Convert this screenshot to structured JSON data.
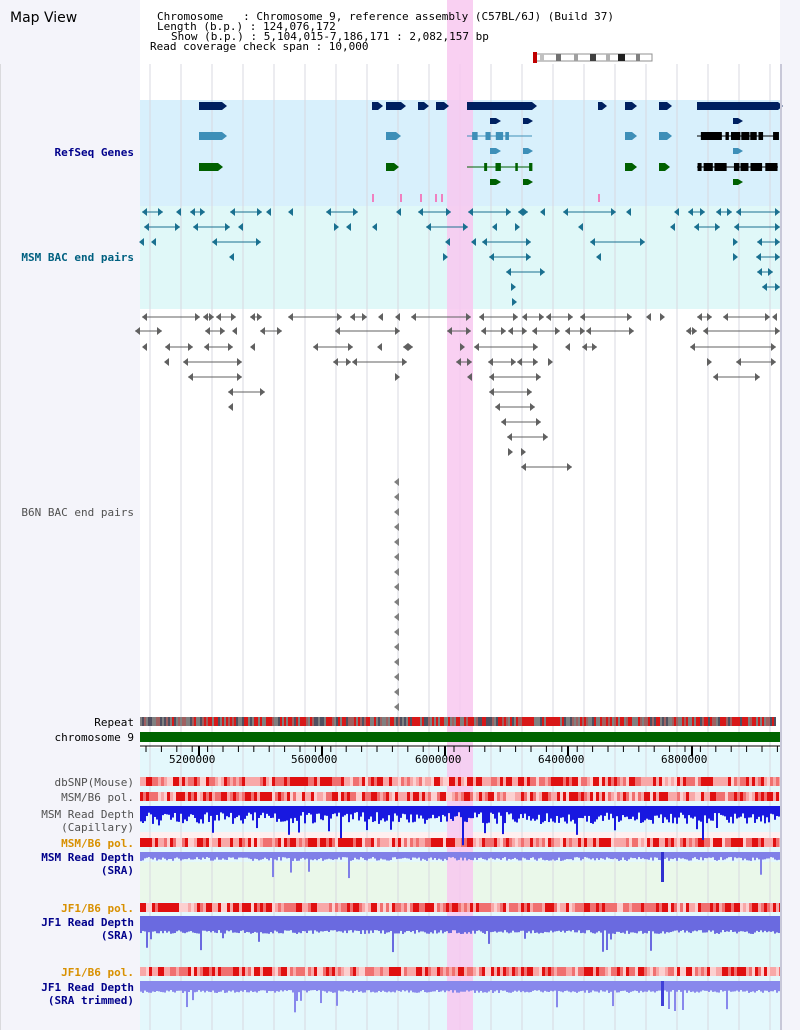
{
  "page": {
    "title": "Map View"
  },
  "info": {
    "chromosome_line": "Chromosome   : Chromosome 9, reference assembly (C57BL/6J) (Build 37)",
    "length_line": "Length (b.p.) : 124,076,172",
    "show_line": "Show (b.p.) : 5,104,015-7,186,171 : 2,082,157 bp",
    "coverage_line": "Read coverage check span : 10,000"
  },
  "tracks": {
    "refseq": "RefSeq Genes",
    "msm_bac": "MSM BAC end pairs",
    "b6n_bac": "B6N BAC end pairs",
    "repeat": "Repeat",
    "chromosome": "chromosome 9",
    "dbsnp": "dbSNP(Mouse)",
    "msm_b6_pol_1": "MSM/B6 pol.",
    "msm_depth_cap_1": "MSM Read Depth",
    "msm_depth_cap_2": "(Capillary)",
    "msm_b6_pol_2": "MSM/B6 pol.",
    "msm_depth_sra_1": "MSM Read Depth",
    "msm_depth_sra_2": "(SRA)",
    "jf1_b6_pol_1": "JF1/B6 pol.",
    "jf1_depth_sra_1": "JF1 Read Depth",
    "jf1_depth_sra_2": "(SRA)",
    "jf1_b6_pol_2": "JF1/B6 pol.",
    "jf1_trim_1": "JF1 Read Depth",
    "jf1_trim_2": "(SRA trimmed)"
  },
  "axis": {
    "ticks": [
      "5200000",
      "5600000",
      "6000000",
      "6400000",
      "6800000"
    ]
  },
  "colors": {
    "highlight": "#f8c8f0",
    "refseq_bg": "#d8f0fc",
    "msm_bac_bg": "#e0f8f8",
    "navy": "#002060",
    "teal": "#0070a0",
    "green": "#006000",
    "chrom_bar": "#006400"
  }
}
